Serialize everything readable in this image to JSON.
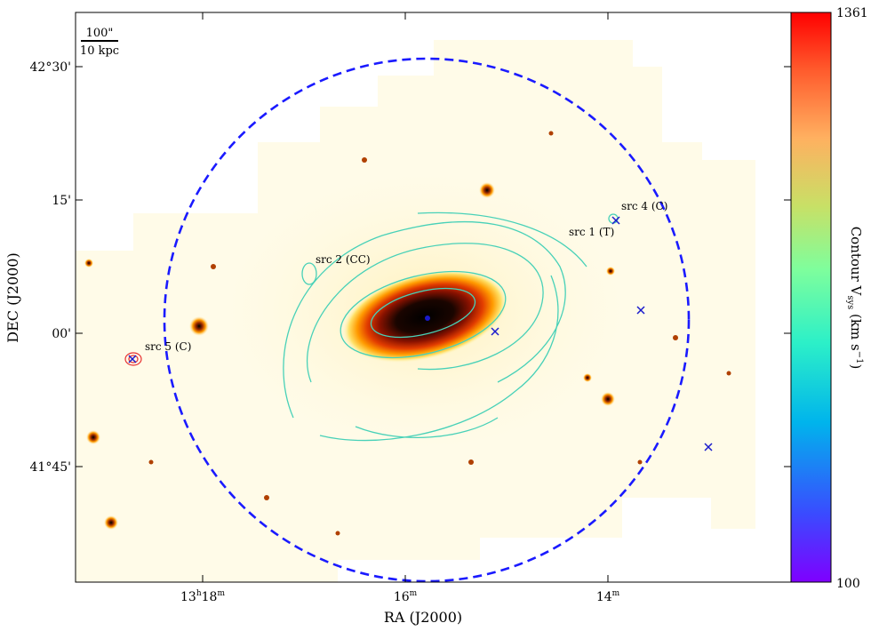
{
  "axes": {
    "xlabel": "RA (J2000)",
    "ylabel": "DEC (J2000)",
    "x_ticks": [
      {
        "label_main": "13",
        "label_sup1": "h",
        "label_mid": "18",
        "label_sup2": "m"
      },
      {
        "label_main": "16",
        "label_sup1": "m",
        "label_mid": "",
        "label_sup2": ""
      },
      {
        "label_main": "14",
        "label_sup1": "m",
        "label_mid": "",
        "label_sup2": ""
      }
    ],
    "y_ticks": [
      {
        "label": "42°30'"
      },
      {
        "label": "15'"
      },
      {
        "label": "00'"
      },
      {
        "label": "41°45'"
      }
    ]
  },
  "scalebar": {
    "top_label": "100\"",
    "bottom_label": "10 kpc"
  },
  "colorbar": {
    "max_label": "1361",
    "min_label": "100",
    "title": "Contour V",
    "title_sub": "sys",
    "title_units": " (km s",
    "title_exp": "−1",
    "title_close": ")",
    "stops": [
      "#7f00ff",
      "#3a4bff",
      "#00b4ec",
      "#2cf0c8",
      "#7ffe9c",
      "#c8e066",
      "#ffb060",
      "#ff5a2c",
      "#ff0000"
    ]
  },
  "sources": [
    {
      "label": "src 1 (T)"
    },
    {
      "label": "src 2 (CC)"
    },
    {
      "label": "src 4 (C)"
    },
    {
      "label": "src 5 (C)"
    }
  ],
  "colors": {
    "circle": "#1a1aff",
    "contour_cyan": "#48d1b8",
    "contour_red": "#e83030",
    "marker": "#1a1acc",
    "background_image": "#fffdf0"
  }
}
